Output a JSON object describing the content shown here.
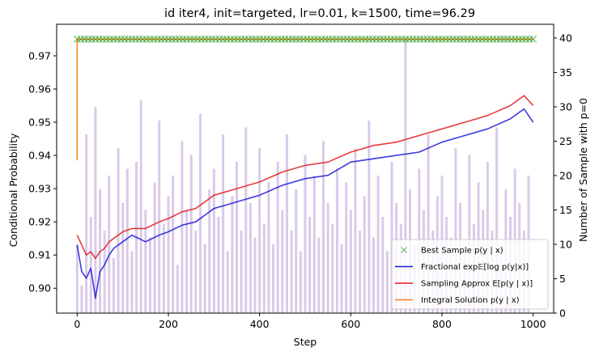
{
  "chart_data": {
    "type": "line",
    "title": "id iter4, init=targeted, lr=0.01, k=1500, time=96.29",
    "xlabel": "Step",
    "ylabel": "Conditional Probability",
    "y2label": "Number of Sample with p=0",
    "xlim": [
      -45,
      1045
    ],
    "ylim": [
      0.8925,
      0.9795
    ],
    "y2lim": [
      0,
      42.0
    ],
    "xticks": [
      0,
      200,
      400,
      600,
      800,
      1000
    ],
    "yticks": [
      0.9,
      0.91,
      0.92,
      0.93,
      0.94,
      0.95,
      0.96,
      0.97
    ],
    "y2ticks": [
      0,
      5,
      10,
      15,
      20,
      25,
      30,
      35,
      40
    ],
    "legend_position": "lower-right",
    "colors": {
      "best_sample": "#2ca02c",
      "fractional": "#1a1adb",
      "sampling": "#e41a1c",
      "integral": "#ff7f0e",
      "bars": "#9467bd",
      "y2_axis": "#800080"
    },
    "series": [
      {
        "name": "Best Sample $p(y \\mid x)$",
        "legend_label": "Best Sample p(y | x)",
        "style": "x-markers",
        "x": [
          0,
          1000
        ],
        "y": [
          0.975,
          0.975
        ]
      },
      {
        "name": "Fractional $\\exp\\mathbb{E}[\\log p(y|x)]$",
        "legend_label": "Fractional exp𝔼[log p(y|x)]",
        "style": "line",
        "x": [
          0,
          10,
          20,
          30,
          40,
          50,
          60,
          70,
          80,
          100,
          120,
          150,
          180,
          200,
          230,
          260,
          300,
          350,
          400,
          450,
          500,
          550,
          600,
          650,
          700,
          750,
          800,
          850,
          900,
          950,
          980,
          1000
        ],
        "y": [
          0.913,
          0.905,
          0.903,
          0.906,
          0.897,
          0.905,
          0.907,
          0.91,
          0.912,
          0.914,
          0.916,
          0.914,
          0.916,
          0.917,
          0.919,
          0.92,
          0.924,
          0.926,
          0.928,
          0.931,
          0.933,
          0.934,
          0.938,
          0.939,
          0.94,
          0.941,
          0.944,
          0.946,
          0.948,
          0.951,
          0.954,
          0.95
        ]
      },
      {
        "name": "Sampling Approx $E[p(y \\mid x)]$",
        "legend_label": "Sampling Approx E[p(y | x)]",
        "style": "line",
        "x": [
          0,
          10,
          20,
          30,
          40,
          50,
          60,
          70,
          80,
          100,
          120,
          150,
          180,
          200,
          230,
          260,
          300,
          350,
          400,
          450,
          500,
          550,
          600,
          650,
          700,
          750,
          800,
          850,
          900,
          950,
          980,
          1000
        ],
        "y": [
          0.916,
          0.913,
          0.91,
          0.911,
          0.909,
          0.911,
          0.912,
          0.914,
          0.915,
          0.917,
          0.918,
          0.918,
          0.92,
          0.921,
          0.923,
          0.924,
          0.928,
          0.93,
          0.932,
          0.935,
          0.937,
          0.938,
          0.941,
          0.943,
          0.944,
          0.946,
          0.948,
          0.95,
          0.952,
          0.955,
          0.958,
          0.955
        ]
      },
      {
        "name": "Integral Solution $p(y \\mid x)$",
        "legend_label": "Integral Solution p(y | x)",
        "style": "line",
        "x": [
          0,
          0,
          1000
        ],
        "y": [
          0.9385,
          0.975,
          0.975
        ]
      },
      {
        "name": "Number of Sample with p=0",
        "style": "bars",
        "axis": "y2",
        "x": [
          0,
          10,
          20,
          30,
          40,
          50,
          60,
          70,
          80,
          90,
          100,
          110,
          120,
          130,
          140,
          150,
          160,
          170,
          180,
          190,
          200,
          210,
          220,
          230,
          240,
          250,
          260,
          270,
          280,
          290,
          300,
          310,
          320,
          330,
          340,
          350,
          360,
          370,
          380,
          390,
          400,
          410,
          420,
          430,
          440,
          450,
          460,
          470,
          480,
          490,
          500,
          510,
          520,
          530,
          540,
          550,
          560,
          570,
          580,
          590,
          600,
          610,
          620,
          630,
          640,
          650,
          660,
          670,
          680,
          690,
          700,
          710,
          720,
          730,
          740,
          750,
          760,
          770,
          780,
          790,
          800,
          810,
          820,
          830,
          840,
          850,
          860,
          870,
          880,
          890,
          900,
          910,
          920,
          930,
          940,
          950,
          960,
          970,
          980,
          990
        ],
        "values": [
          10,
          4,
          26,
          14,
          30,
          18,
          12,
          20,
          8,
          24,
          16,
          21,
          9,
          22,
          31,
          15,
          11,
          19,
          28,
          13,
          17,
          20,
          7,
          25,
          15,
          23,
          12,
          29,
          10,
          18,
          21,
          14,
          26,
          9,
          17,
          22,
          12,
          27,
          16,
          11,
          24,
          13,
          19,
          10,
          22,
          15,
          26,
          12,
          18,
          9,
          23,
          14,
          20,
          11,
          25,
          16,
          13,
          21,
          10,
          19,
          15,
          24,
          12,
          17,
          28,
          11,
          20,
          14,
          9,
          22,
          16,
          13,
          40,
          18,
          10,
          21,
          15,
          26,
          12,
          17,
          20,
          14,
          11,
          24,
          16,
          9,
          23,
          13,
          19,
          15,
          22,
          12,
          27,
          10,
          18,
          14,
          21,
          16,
          12,
          20
        ]
      }
    ]
  }
}
